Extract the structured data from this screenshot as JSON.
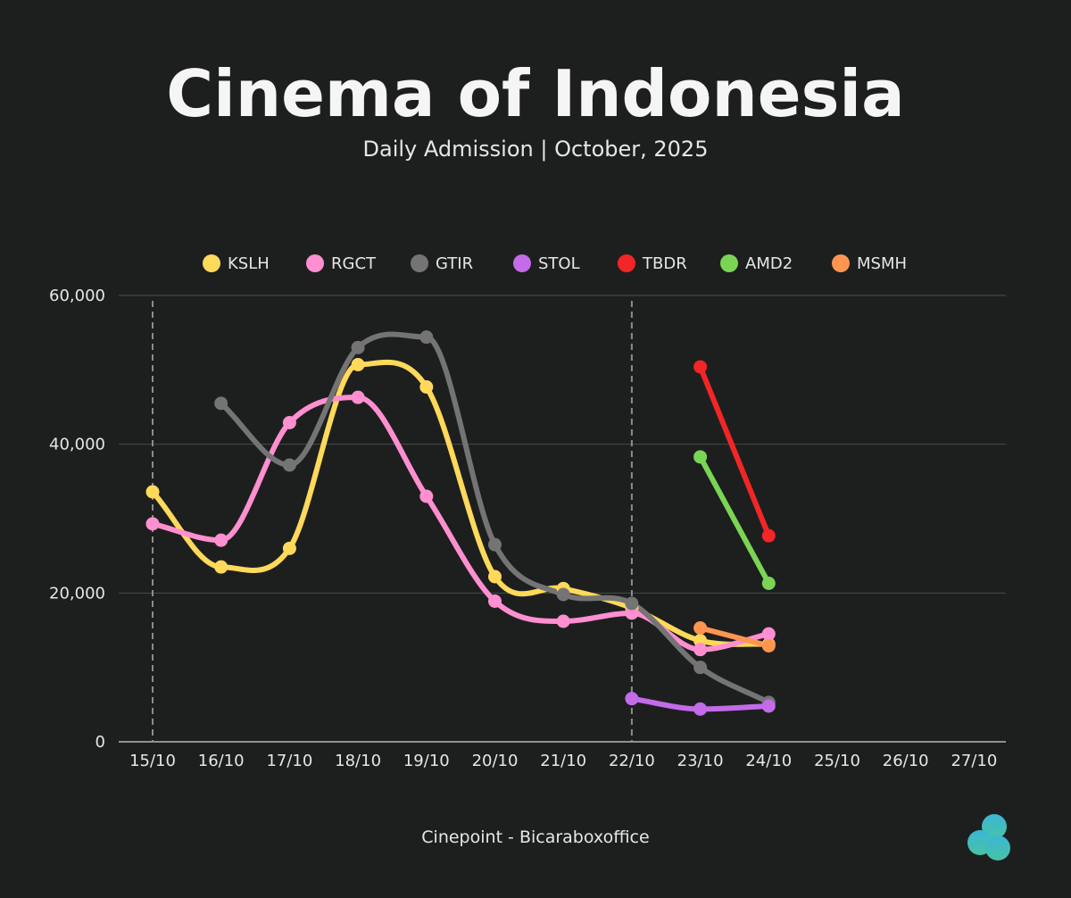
{
  "chart_data": {
    "type": "line",
    "title": "Cinema of Indonesia",
    "subtitle": "Daily Admission | October, 2025",
    "source": "Cinepoint - Bicaraboxoffice",
    "categories": [
      "15/10",
      "16/10",
      "17/10",
      "18/10",
      "19/10",
      "20/10",
      "21/10",
      "22/10",
      "23/10",
      "24/10",
      "25/10",
      "26/10",
      "27/10"
    ],
    "ylim": [
      0,
      60000
    ],
    "yticks": [
      0,
      20000,
      40000,
      60000
    ],
    "ytick_labels": [
      "0",
      "20,000",
      "40,000",
      "60,000"
    ],
    "grid": true,
    "legend_position": "top",
    "reference_lines": [
      "15/10",
      "22/10"
    ],
    "series": [
      {
        "name": "KSLH",
        "color": "#ffd95a",
        "values": [
          33600,
          23500,
          26000,
          50700,
          47700,
          22200,
          20600,
          18000,
          13600,
          13100,
          null,
          null,
          null
        ]
      },
      {
        "name": "RGCT",
        "color": "#ff8fd0",
        "values": [
          29300,
          27100,
          42900,
          46300,
          33000,
          18900,
          16200,
          17300,
          12400,
          14500,
          null,
          null,
          null
        ]
      },
      {
        "name": "GTIR",
        "color": "#747474",
        "values": [
          null,
          45500,
          37200,
          53000,
          54400,
          26500,
          19800,
          18600,
          10000,
          5300,
          null,
          null,
          null
        ]
      },
      {
        "name": "STOL",
        "color": "#c36be9",
        "values": [
          null,
          null,
          null,
          null,
          null,
          null,
          null,
          5800,
          4400,
          4800,
          null,
          null,
          null
        ]
      },
      {
        "name": "TBDR",
        "color": "#f22626",
        "values": [
          null,
          null,
          null,
          null,
          null,
          null,
          null,
          null,
          50400,
          27700,
          null,
          null,
          null
        ]
      },
      {
        "name": "AMD2",
        "color": "#7ad554",
        "values": [
          null,
          null,
          null,
          null,
          null,
          null,
          null,
          null,
          38300,
          21300,
          null,
          null,
          null
        ]
      },
      {
        "name": "MSMH",
        "color": "#ff9550",
        "values": [
          null,
          null,
          null,
          null,
          null,
          null,
          null,
          null,
          15300,
          12900,
          null,
          null,
          null
        ]
      }
    ]
  },
  "colors": {
    "background": "#1d1f1f",
    "grid": "#4a4c4c",
    "axis": "#b5b5b5",
    "logo_top": "#3ab7d6",
    "logo_bottom": "#47c2a5"
  }
}
